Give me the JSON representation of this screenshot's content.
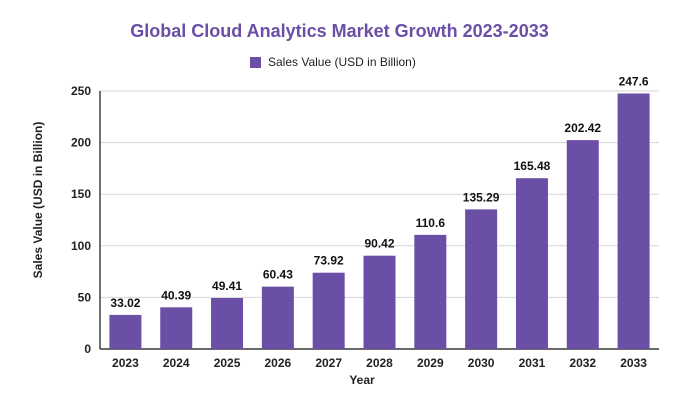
{
  "chart_data": {
    "type": "bar",
    "title": "Global Cloud Analytics Market Growth 2023-2033",
    "xlabel": "Year",
    "ylabel": "Sales Value (USD in Billion)",
    "categories": [
      "2023",
      "2024",
      "2025",
      "2026",
      "2027",
      "2028",
      "2029",
      "2030",
      "2031",
      "2032",
      "2033"
    ],
    "series": [
      {
        "name": "Sales Value (USD in Billion)",
        "values": [
          33.02,
          40.39,
          49.41,
          60.43,
          73.92,
          90.42,
          110.6,
          135.29,
          165.48,
          202.42,
          247.6
        ]
      }
    ],
    "data_labels": [
      "33.02",
      "40.39",
      "49.41",
      "60.43",
      "73.92",
      "90.42",
      "110.6",
      "135.29",
      "165.48",
      "202.42",
      "247.6"
    ],
    "ylim": [
      0,
      250
    ],
    "yticks": [
      0,
      50,
      100,
      150,
      200,
      250
    ],
    "grid": true,
    "legend_position": "top-center",
    "colors": {
      "bar": "#6b4fa7",
      "title": "#6b4fa7",
      "grid": "#d6d6d6",
      "axis": "#111111",
      "first_label": "#0f3a4a"
    }
  }
}
